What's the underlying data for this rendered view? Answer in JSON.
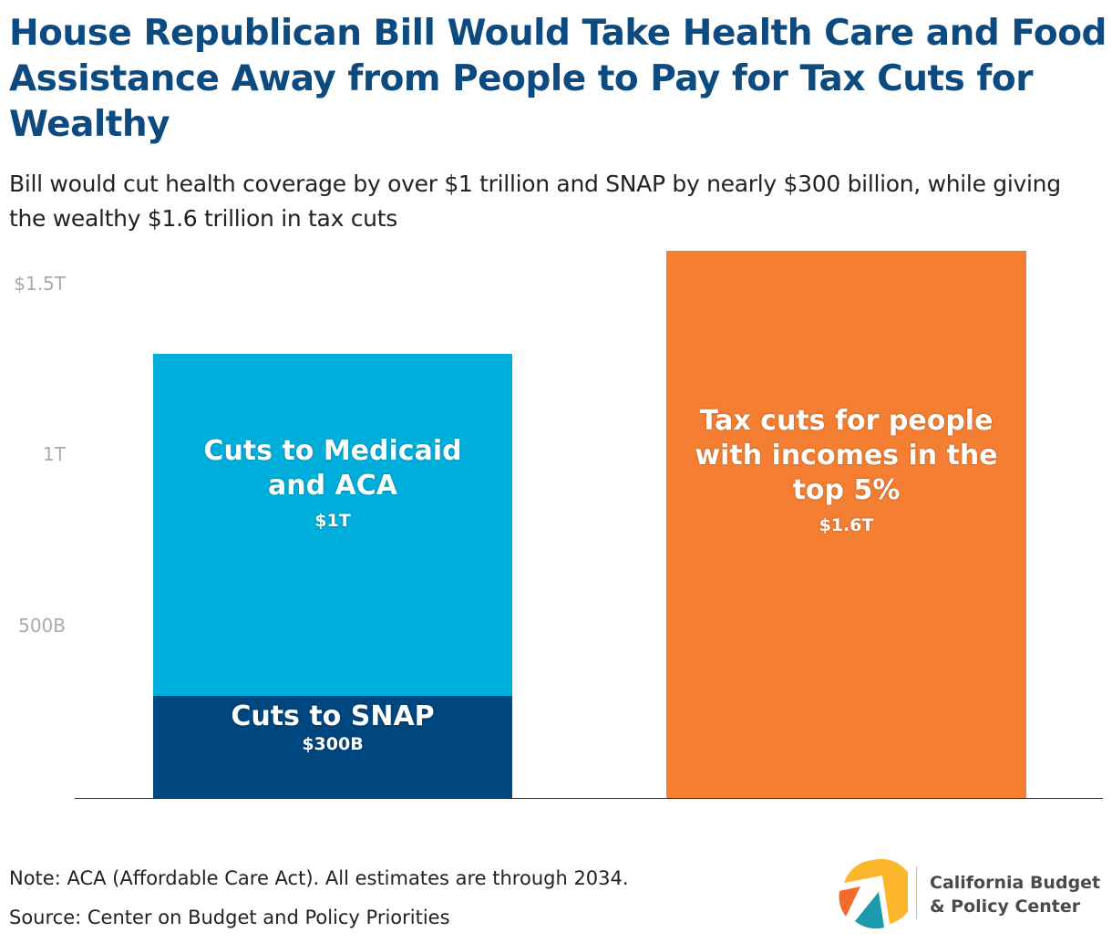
{
  "chart_data": {
    "type": "bar",
    "stacked": true,
    "title": "House Republican Bill Would Take Health Care and Food Assistance Away from People to Pay for Tax Cuts for Wealthy",
    "subtitle": "Bill would cut health coverage by over $1 trillion and SNAP by nearly $300 billion, while giving the wealthy $1.6 trillion in tax cuts",
    "ylim": [
      0,
      1.6
    ],
    "yunit": "trillion dollars",
    "yticks": [
      {
        "value": 0.5,
        "label": "500B"
      },
      {
        "value": 1.0,
        "label": "1T"
      },
      {
        "value": 1.5,
        "label": "$1.5T"
      }
    ],
    "grid": false,
    "bars": [
      {
        "segments": [
          {
            "label": "Cuts to SNAP",
            "value_label": "$300B",
            "value": 0.3,
            "color": "#00467f"
          },
          {
            "label": "Cuts to Medicaid and ACA",
            "value_label": "$1T",
            "value": 1.0,
            "color": "#00aedb"
          }
        ]
      },
      {
        "segments": [
          {
            "label": "Tax cuts for people with incomes in the top 5%",
            "value_label": "$1.6T",
            "value": 1.6,
            "color": "#f47f32"
          }
        ]
      }
    ]
  },
  "footer": {
    "note": "Note: ACA (Affordable Care Act). All estimates are through 2034.",
    "source": "Source: Center on Budget and Policy Priorities"
  },
  "logo": {
    "line1": "California Budget",
    "line2": "& Policy Center"
  }
}
